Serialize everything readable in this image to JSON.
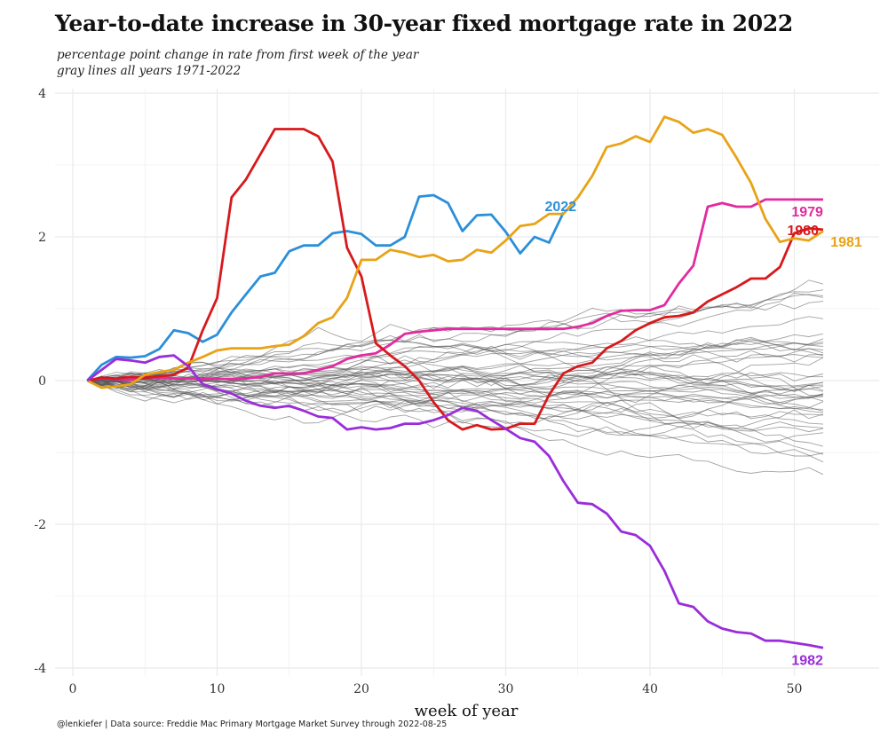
{
  "chart_data": {
    "type": "line",
    "title": "Year-to-date increase in 30-year fixed mortgage rate in 2022",
    "subtitle_lines": [
      "percentage point change in rate from first week of the year",
      "gray lines all years 1971-2022"
    ],
    "xlabel": "week of year",
    "ylabel": "",
    "caption": "@lenkiefer | Data source: Freddie Mac Primary Mortgage Market Survey through 2022-08-25",
    "xlim": [
      0,
      53
    ],
    "ylim": [
      -4,
      4
    ],
    "x_ticks": [
      0,
      10,
      20,
      30,
      40,
      50
    ],
    "y_ticks": [
      -4,
      -2,
      0,
      2,
      4
    ],
    "grid": true,
    "legend": "none (series labeled directly at line ends)",
    "series": [
      {
        "name": "2022",
        "color": "#2b8fd9",
        "label_x": 33.8,
        "label_y": 2.43,
        "points": [
          [
            1,
            0
          ],
          [
            2,
            0.22
          ],
          [
            3,
            0.33
          ],
          [
            4,
            0.32
          ],
          [
            5,
            0.34
          ],
          [
            6,
            0.44
          ],
          [
            7,
            0.7
          ],
          [
            8,
            0.66
          ],
          [
            9,
            0.54
          ],
          [
            10,
            0.64
          ],
          [
            11,
            0.95
          ],
          [
            12,
            1.2
          ],
          [
            13,
            1.45
          ],
          [
            14,
            1.5
          ],
          [
            15,
            1.8
          ],
          [
            16,
            1.88
          ],
          [
            17,
            1.88
          ],
          [
            18,
            2.05
          ],
          [
            19,
            2.08
          ],
          [
            20,
            2.04
          ],
          [
            21,
            1.88
          ],
          [
            22,
            1.88
          ],
          [
            23,
            2.0
          ],
          [
            24,
            2.56
          ],
          [
            25,
            2.58
          ],
          [
            26,
            2.47
          ],
          [
            27,
            2.08
          ],
          [
            28,
            2.3
          ],
          [
            29,
            2.31
          ],
          [
            30,
            2.07
          ],
          [
            31,
            1.77
          ],
          [
            32,
            2.0
          ],
          [
            33,
            1.92
          ],
          [
            34,
            2.34
          ]
        ]
      },
      {
        "name": "1979",
        "color": "#e22b9f",
        "label_x": 50.9,
        "label_y": 2.36,
        "points": [
          [
            1,
            0
          ],
          [
            2,
            0.03
          ],
          [
            3,
            0.02
          ],
          [
            4,
            0.01
          ],
          [
            5,
            0.05
          ],
          [
            6,
            0.04
          ],
          [
            7,
            0.03
          ],
          [
            8,
            0.03
          ],
          [
            9,
            0.02
          ],
          [
            10,
            0.03
          ],
          [
            11,
            0.02
          ],
          [
            12,
            0.03
          ],
          [
            13,
            0.05
          ],
          [
            14,
            0.1
          ],
          [
            15,
            0.1
          ],
          [
            16,
            0.1
          ],
          [
            17,
            0.15
          ],
          [
            18,
            0.2
          ],
          [
            19,
            0.3
          ],
          [
            20,
            0.35
          ],
          [
            21,
            0.38
          ],
          [
            22,
            0.5
          ],
          [
            23,
            0.65
          ],
          [
            24,
            0.68
          ],
          [
            25,
            0.7
          ],
          [
            26,
            0.72
          ],
          [
            27,
            0.72
          ],
          [
            28,
            0.72
          ],
          [
            29,
            0.72
          ],
          [
            30,
            0.72
          ],
          [
            31,
            0.72
          ],
          [
            32,
            0.72
          ],
          [
            33,
            0.72
          ],
          [
            34,
            0.72
          ],
          [
            35,
            0.75
          ],
          [
            36,
            0.8
          ],
          [
            37,
            0.9
          ],
          [
            38,
            0.97
          ],
          [
            39,
            0.98
          ],
          [
            40,
            0.98
          ],
          [
            41,
            1.05
          ],
          [
            42,
            1.35
          ],
          [
            43,
            1.6
          ],
          [
            44,
            2.42
          ],
          [
            45,
            2.47
          ],
          [
            46,
            2.42
          ],
          [
            47,
            2.42
          ],
          [
            48,
            2.52
          ],
          [
            49,
            2.52
          ],
          [
            50,
            2.52
          ],
          [
            51,
            2.52
          ],
          [
            52,
            2.52
          ]
        ]
      },
      {
        "name": "1980",
        "color": "#d7191c",
        "label_x": 50.6,
        "label_y": 2.1,
        "points": [
          [
            1,
            0
          ],
          [
            2,
            0.04
          ],
          [
            3,
            0.03
          ],
          [
            4,
            0.05
          ],
          [
            5,
            0.04
          ],
          [
            6,
            0.06
          ],
          [
            7,
            0.08
          ],
          [
            8,
            0.18
          ],
          [
            9,
            0.7
          ],
          [
            10,
            1.15
          ],
          [
            11,
            2.55
          ],
          [
            12,
            2.8
          ],
          [
            13,
            3.15
          ],
          [
            14,
            3.5
          ],
          [
            15,
            3.5
          ],
          [
            16,
            3.5
          ],
          [
            17,
            3.4
          ],
          [
            18,
            3.05
          ],
          [
            19,
            1.85
          ],
          [
            20,
            1.45
          ],
          [
            21,
            0.52
          ],
          [
            22,
            0.35
          ],
          [
            23,
            0.2
          ],
          [
            24,
            0.0
          ],
          [
            25,
            -0.3
          ],
          [
            26,
            -0.55
          ],
          [
            27,
            -0.68
          ],
          [
            28,
            -0.62
          ],
          [
            29,
            -0.68
          ],
          [
            30,
            -0.67
          ],
          [
            31,
            -0.6
          ],
          [
            32,
            -0.6
          ],
          [
            33,
            -0.2
          ],
          [
            34,
            0.1
          ],
          [
            35,
            0.2
          ],
          [
            36,
            0.25
          ],
          [
            37,
            0.45
          ],
          [
            38,
            0.55
          ],
          [
            39,
            0.7
          ],
          [
            40,
            0.8
          ],
          [
            41,
            0.88
          ],
          [
            42,
            0.9
          ],
          [
            43,
            0.95
          ],
          [
            44,
            1.1
          ],
          [
            45,
            1.2
          ],
          [
            46,
            1.3
          ],
          [
            47,
            1.42
          ],
          [
            48,
            1.42
          ],
          [
            49,
            1.58
          ],
          [
            50,
            2.05
          ],
          [
            51,
            2.12
          ],
          [
            52,
            2.1
          ]
        ]
      },
      {
        "name": "1981",
        "color": "#e8a317",
        "label_x": 53.6,
        "label_y": 1.94,
        "points": [
          [
            1,
            0
          ],
          [
            2,
            -0.1
          ],
          [
            3,
            -0.08
          ],
          [
            4,
            -0.05
          ],
          [
            5,
            0.08
          ],
          [
            6,
            0.12
          ],
          [
            7,
            0.15
          ],
          [
            8,
            0.25
          ],
          [
            9,
            0.33
          ],
          [
            10,
            0.42
          ],
          [
            11,
            0.45
          ],
          [
            12,
            0.45
          ],
          [
            13,
            0.45
          ],
          [
            14,
            0.48
          ],
          [
            15,
            0.5
          ],
          [
            16,
            0.62
          ],
          [
            17,
            0.8
          ],
          [
            18,
            0.88
          ],
          [
            19,
            1.15
          ],
          [
            20,
            1.68
          ],
          [
            21,
            1.68
          ],
          [
            22,
            1.82
          ],
          [
            23,
            1.78
          ],
          [
            24,
            1.72
          ],
          [
            25,
            1.75
          ],
          [
            26,
            1.66
          ],
          [
            27,
            1.68
          ],
          [
            28,
            1.82
          ],
          [
            29,
            1.78
          ],
          [
            30,
            1.95
          ],
          [
            31,
            2.15
          ],
          [
            32,
            2.18
          ],
          [
            33,
            2.32
          ],
          [
            34,
            2.32
          ],
          [
            35,
            2.55
          ],
          [
            36,
            2.85
          ],
          [
            37,
            3.25
          ],
          [
            38,
            3.3
          ],
          [
            39,
            3.4
          ],
          [
            40,
            3.32
          ],
          [
            41,
            3.67
          ],
          [
            42,
            3.6
          ],
          [
            43,
            3.45
          ],
          [
            44,
            3.5
          ],
          [
            45,
            3.42
          ],
          [
            46,
            3.1
          ],
          [
            47,
            2.75
          ],
          [
            48,
            2.25
          ],
          [
            49,
            1.93
          ],
          [
            50,
            1.98
          ],
          [
            51,
            1.95
          ],
          [
            52,
            2.08
          ]
        ]
      },
      {
        "name": "1982",
        "color": "#9a2ddb",
        "label_x": 50.9,
        "label_y": -3.88,
        "points": [
          [
            1,
            0
          ],
          [
            2,
            0.15
          ],
          [
            3,
            0.3
          ],
          [
            4,
            0.28
          ],
          [
            5,
            0.25
          ],
          [
            6,
            0.33
          ],
          [
            7,
            0.35
          ],
          [
            8,
            0.2
          ],
          [
            9,
            -0.05
          ],
          [
            10,
            -0.12
          ],
          [
            11,
            -0.18
          ],
          [
            12,
            -0.28
          ],
          [
            13,
            -0.35
          ],
          [
            14,
            -0.38
          ],
          [
            15,
            -0.35
          ],
          [
            16,
            -0.42
          ],
          [
            17,
            -0.5
          ],
          [
            18,
            -0.52
          ],
          [
            19,
            -0.68
          ],
          [
            20,
            -0.65
          ],
          [
            21,
            -0.68
          ],
          [
            22,
            -0.66
          ],
          [
            23,
            -0.6
          ],
          [
            24,
            -0.6
          ],
          [
            25,
            -0.55
          ],
          [
            26,
            -0.48
          ],
          [
            27,
            -0.38
          ],
          [
            28,
            -0.42
          ],
          [
            29,
            -0.55
          ],
          [
            30,
            -0.67
          ],
          [
            31,
            -0.8
          ],
          [
            32,
            -0.85
          ],
          [
            33,
            -1.05
          ],
          [
            34,
            -1.4
          ],
          [
            35,
            -1.7
          ],
          [
            36,
            -1.72
          ],
          [
            37,
            -1.85
          ],
          [
            38,
            -2.1
          ],
          [
            39,
            -2.15
          ],
          [
            40,
            -2.3
          ],
          [
            41,
            -2.65
          ],
          [
            42,
            -3.1
          ],
          [
            43,
            -3.15
          ],
          [
            44,
            -3.35
          ],
          [
            45,
            -3.45
          ],
          [
            46,
            -3.5
          ],
          [
            47,
            -3.52
          ],
          [
            48,
            -3.62
          ],
          [
            49,
            -3.62
          ],
          [
            50,
            -3.65
          ],
          [
            51,
            -3.68
          ],
          [
            52,
            -3.72
          ]
        ]
      }
    ]
  },
  "colors": {
    "gray_lines": "#555555",
    "grid": "#ebebeb",
    "axis_text": "#333333"
  }
}
